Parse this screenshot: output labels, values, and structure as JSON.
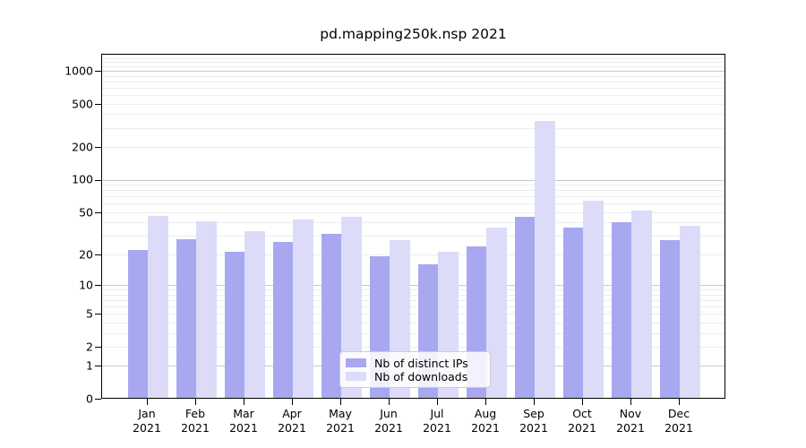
{
  "figure": {
    "title": "pd.mapping250k.nsp 2021"
  },
  "chart_data": {
    "type": "bar",
    "title": "pd.mapping250k.nsp 2021",
    "categories": [
      "Jan",
      "Feb",
      "Mar",
      "Apr",
      "May",
      "Jun",
      "Jul",
      "Aug",
      "Sep",
      "Oct",
      "Nov",
      "Dec"
    ],
    "x_year": "2021",
    "series": [
      {
        "name": "Nb of distinct IPs",
        "color": "#a8a8f0",
        "values": [
          22,
          28,
          21,
          26,
          31,
          19,
          16,
          24,
          45,
          36,
          40,
          27
        ]
      },
      {
        "name": "Nb of downloads",
        "color": "#dcdcf8",
        "values": [
          46,
          41,
          33,
          43,
          45,
          27,
          21,
          36,
          345,
          64,
          52,
          37
        ]
      }
    ],
    "y_ticks": [
      0,
      1,
      2,
      5,
      10,
      20,
      50,
      100,
      200,
      500,
      1000
    ],
    "y_major_gridlines": [
      1,
      10,
      100,
      1000
    ],
    "y_scale": "log10(value+1)",
    "ylim": [
      0,
      1430
    ],
    "xlabel": "",
    "ylabel": "",
    "grid": "both",
    "legend_position": "inside-bottom-center"
  }
}
